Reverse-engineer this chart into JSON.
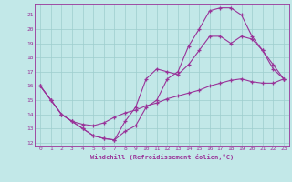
{
  "xlabel": "Windchill (Refroidissement éolien,°C)",
  "xlim": [
    -0.5,
    23.5
  ],
  "ylim": [
    11.8,
    21.8
  ],
  "yticks": [
    12,
    13,
    14,
    15,
    16,
    17,
    18,
    19,
    20,
    21
  ],
  "xticks": [
    0,
    1,
    2,
    3,
    4,
    5,
    6,
    7,
    8,
    9,
    10,
    11,
    12,
    13,
    14,
    15,
    16,
    17,
    18,
    19,
    20,
    21,
    22,
    23
  ],
  "bg_color": "#c2e8e8",
  "grid_color": "#9dcece",
  "line_color": "#993399",
  "line1_x": [
    0,
    1,
    2,
    3,
    4,
    5,
    6,
    7,
    8,
    9,
    10,
    11,
    12,
    13,
    14,
    15,
    16,
    17,
    18,
    19,
    20,
    21,
    22,
    23
  ],
  "line1_y": [
    16.0,
    15.0,
    14.0,
    13.5,
    13.0,
    12.5,
    12.3,
    12.2,
    12.8,
    13.2,
    14.5,
    15.0,
    16.5,
    17.0,
    18.8,
    20.0,
    21.3,
    21.5,
    21.5,
    21.0,
    19.5,
    18.5,
    17.2,
    16.5
  ],
  "line2_x": [
    0,
    1,
    2,
    3,
    4,
    5,
    6,
    7,
    8,
    9,
    10,
    11,
    12,
    13,
    14,
    15,
    16,
    17,
    18,
    19,
    20,
    21,
    22,
    23
  ],
  "line2_y": [
    16.0,
    15.0,
    14.0,
    13.5,
    13.0,
    12.5,
    12.3,
    12.2,
    13.5,
    14.5,
    16.5,
    17.2,
    17.0,
    16.8,
    17.5,
    18.5,
    19.5,
    19.5,
    19.0,
    19.5,
    19.3,
    18.5,
    17.5,
    16.5
  ],
  "line3_x": [
    0,
    1,
    2,
    3,
    4,
    5,
    6,
    7,
    8,
    9,
    10,
    11,
    12,
    13,
    14,
    15,
    16,
    17,
    18,
    19,
    20,
    21,
    22,
    23
  ],
  "line3_y": [
    16.0,
    15.0,
    14.0,
    13.5,
    13.3,
    13.2,
    13.4,
    13.8,
    14.1,
    14.3,
    14.6,
    14.8,
    15.1,
    15.3,
    15.5,
    15.7,
    16.0,
    16.2,
    16.4,
    16.5,
    16.3,
    16.2,
    16.2,
    16.5
  ]
}
